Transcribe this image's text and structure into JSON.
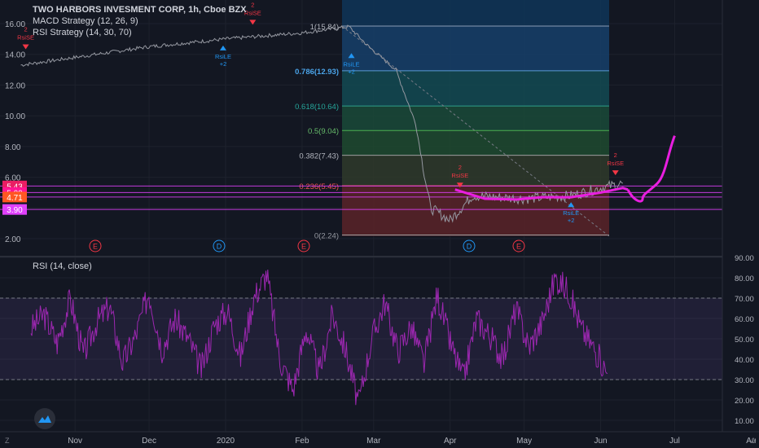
{
  "header": {
    "title": "TWO HARBORS INVESMENT CORP, 1h, Cboe BZX",
    "macd": "MACD Strategy (12, 26, 9)",
    "rsi_strategy": "RSI Strategy (14, 30, 70)"
  },
  "rsi_panel": {
    "label": "RSI (14, close)"
  },
  "colors": {
    "background": "#131722",
    "price_line": "#9598a1",
    "rsi_line": "#9c27b0",
    "projection": "#e91ee0",
    "fib_blue": "#1e3a5f",
    "fib_green": "#1b4332",
    "fib_red": "#5c1f24",
    "buy_marker": "#2196f3",
    "sell_marker": "#f23645"
  },
  "bottom_axis": {
    "ticks": [
      "Nov",
      "Dec",
      "2020",
      "Feb",
      "Mar",
      "Apr",
      "May",
      "Jun",
      "Jul",
      "Au"
    ],
    "left_icon": "Z",
    "right_icon": "A"
  },
  "chart_data": [
    {
      "type": "line",
      "title": "TWO HARBORS INVESMENT CORP, 1h, Cboe BZX",
      "y_ticks": [
        "16.00",
        "14.00",
        "12.00",
        "10.00",
        "8.00",
        "6.00",
        "4.00",
        "2.00"
      ],
      "ylim": [
        1.8,
        16.8
      ],
      "price_labels": [
        "5.43",
        "5.00",
        "4.71",
        "3.90"
      ],
      "price_label_values": [
        5.43,
        5.0,
        4.71,
        3.9
      ],
      "x": [
        "Oct 10",
        "Nov 1",
        "Dec 1",
        "Jan 1",
        "Feb 1",
        "Feb 20",
        "Feb 28",
        "Mar 10",
        "Mar 18",
        "Mar 24",
        "Apr 1",
        "Apr 10",
        "May 1",
        "May 20",
        "Jun 1",
        "Jun 10"
      ],
      "series": [
        {
          "values": [
            13.3,
            13.8,
            14.5,
            15.0,
            15.4,
            15.8,
            14.5,
            13.0,
            9.5,
            4.0,
            3.2,
            4.8,
            4.6,
            4.8,
            5.3,
            5.6
          ]
        }
      ],
      "projection": {
        "x": [
          "Jun 12",
          "Jun 18",
          "Jun 24",
          "Jul 1"
        ],
        "values": [
          5.2,
          4.6,
          5.6,
          8.7
        ]
      },
      "fibonacci": [
        {
          "label": "1(15.84)",
          "value": 15.84
        },
        {
          "label": "0.786(12.93)",
          "value": 12.93
        },
        {
          "label": "0.618(10.64)",
          "value": 10.64
        },
        {
          "label": "0.5(9.04)",
          "value": 9.04
        },
        {
          "label": "0.382(7.43)",
          "value": 7.43
        },
        {
          "label": "0.236(5.45)",
          "value": 5.45
        },
        {
          "label": "0(2.24)",
          "value": 2.24
        }
      ],
      "signals": [
        {
          "text": [
            "2",
            "RsiSE"
          ],
          "kind": "sell",
          "date": "Oct 12"
        },
        {
          "text": [
            "2",
            "RsiSE"
          ],
          "kind": "sell",
          "date": "Jan 12"
        },
        {
          "text": [
            "RsiLE",
            "+2"
          ],
          "kind": "buy",
          "date": "Dec 31"
        },
        {
          "text": [
            "RsiLE",
            "+2"
          ],
          "kind": "buy",
          "date": "Feb 21"
        },
        {
          "text": [
            "2",
            "RsiSE"
          ],
          "kind": "sell",
          "date": "Apr 5"
        },
        {
          "text": [
            "RsiLE",
            "+2"
          ],
          "kind": "buy",
          "date": "May 20"
        },
        {
          "text": [
            "2",
            "RsiSE"
          ],
          "kind": "sell",
          "date": "Jun 7"
        }
      ],
      "events": [
        {
          "label": "E",
          "kind": "earnings"
        },
        {
          "label": "D",
          "kind": "dividend"
        },
        {
          "label": "E",
          "kind": "earnings"
        },
        {
          "label": "D",
          "kind": "dividend"
        },
        {
          "label": "E",
          "kind": "earnings"
        }
      ]
    },
    {
      "type": "line",
      "title": "RSI (14, close)",
      "y_ticks": [
        "90.00",
        "80.00",
        "70.00",
        "60.00",
        "50.00",
        "40.00",
        "30.00",
        "20.00",
        "10.00"
      ],
      "ylim": [
        7,
        92
      ],
      "bands": [
        70,
        30
      ],
      "series": [
        {
          "name": "RSI",
          "values": [
            55,
            62,
            48,
            70,
            42,
            58,
            66,
            38,
            52,
            73,
            45,
            60,
            50,
            35,
            57,
            64,
            41,
            70,
            82,
            40,
            25,
            55,
            33,
            62,
            45,
            18,
            50,
            68,
            44,
            56,
            38,
            72,
            48,
            30,
            60,
            52,
            40,
            65,
            46,
            58,
            80,
            74,
            55,
            45,
            33
          ]
        }
      ]
    }
  ]
}
